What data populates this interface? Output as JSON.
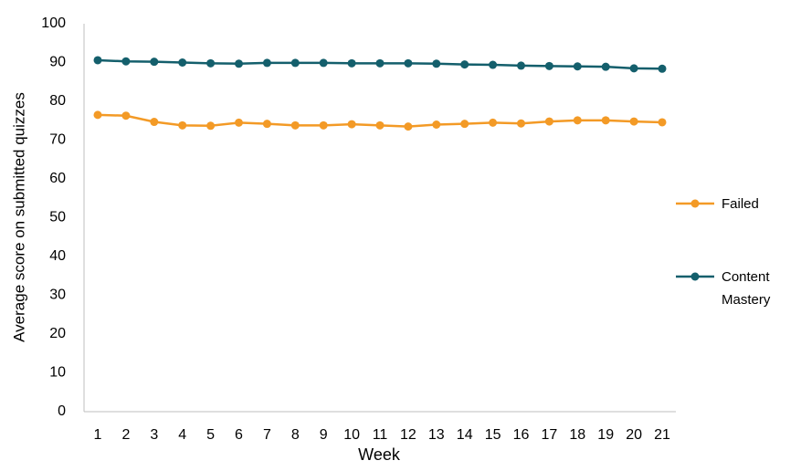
{
  "chart_data": {
    "type": "line",
    "x_label": "Week",
    "y_label": "Average score on  submitted quizzes",
    "categories": [
      "1",
      "2",
      "3",
      "4",
      "5",
      "6",
      "7",
      "8",
      "9",
      "10",
      "11",
      "12",
      "13",
      "14",
      "15",
      "16",
      "17",
      "18",
      "19",
      "20",
      "21"
    ],
    "series": [
      {
        "name": "Failed",
        "color": "#f39a26",
        "values": [
          76.5,
          76.3,
          74.7,
          73.8,
          73.7,
          74.5,
          74.2,
          73.8,
          73.8,
          74.1,
          73.8,
          73.5,
          74.0,
          74.2,
          74.5,
          74.3,
          74.8,
          75.1,
          75.1,
          74.8,
          74.6
        ]
      },
      {
        "name": "Content Mastery",
        "color": "#145f6c",
        "values": [
          90.6,
          90.3,
          90.2,
          90.0,
          89.8,
          89.7,
          89.9,
          89.9,
          89.9,
          89.8,
          89.8,
          89.8,
          89.7,
          89.5,
          89.4,
          89.2,
          89.1,
          89.0,
          88.9,
          88.5,
          88.4
        ]
      }
    ],
    "ylim": [
      0,
      100
    ],
    "yticks": [
      0,
      10,
      20,
      30,
      40,
      50,
      60,
      70,
      80,
      90,
      100
    ],
    "grid": false,
    "legend": "right"
  }
}
